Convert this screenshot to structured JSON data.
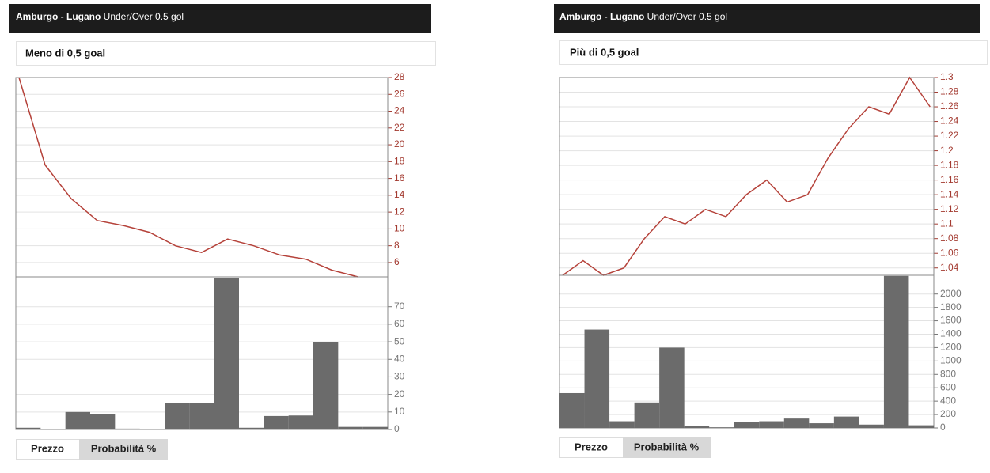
{
  "panels": [
    {
      "match": "Amburgo - Lugano",
      "market": "Under/Over 0.5 gol",
      "selection": "Meno di 0,5 goal",
      "buttons": [
        "Prezzo",
        "Probabilità %"
      ]
    },
    {
      "match": "Amburgo - Lugano",
      "market": "Under/Over 0.5 gol",
      "selection": "Più di 0,5 goal",
      "buttons": [
        "Prezzo",
        "Probabilità %"
      ]
    }
  ],
  "chart_data": [
    {
      "type": "line",
      "color": "#b5423a",
      "values": [
        28,
        17.6,
        13.6,
        11.0,
        10.4,
        9.6,
        8.0,
        7.2,
        8.8,
        8.0,
        6.9,
        6.4,
        5.1,
        4.3
      ],
      "ylim": [
        4.3,
        28
      ],
      "yticks": [
        6,
        8,
        10,
        12,
        14,
        16,
        18,
        20,
        22,
        24,
        26,
        28
      ],
      "grid": true
    },
    {
      "type": "bar",
      "color": "#6b6b6b",
      "values": [
        1,
        0,
        10,
        9,
        0.5,
        0,
        15,
        15,
        86.5,
        1,
        7.7,
        8,
        50,
        1.5,
        1.5
      ],
      "ylim": [
        0,
        87
      ],
      "yticks": [
        0,
        10,
        20,
        30,
        40,
        50,
        60,
        70
      ],
      "grid": true
    },
    {
      "type": "line",
      "color": "#b5423a",
      "values": [
        1.03,
        1.05,
        1.03,
        1.04,
        1.08,
        1.11,
        1.1,
        1.12,
        1.11,
        1.14,
        1.16,
        1.13,
        1.14,
        1.19,
        1.23,
        1.26,
        1.25,
        1.3,
        1.26
      ],
      "ylim": [
        1.03,
        1.3
      ],
      "yticks": [
        1.04,
        1.06,
        1.08,
        1.1,
        1.12,
        1.14,
        1.16,
        1.18,
        1.2,
        1.22,
        1.24,
        1.26,
        1.28,
        1.3
      ],
      "grid": true
    },
    {
      "type": "bar",
      "color": "#6b6b6b",
      "values": [
        520,
        1470,
        100,
        380,
        1200,
        30,
        10,
        90,
        100,
        140,
        70,
        170,
        50,
        2270,
        40
      ],
      "ylim": [
        0,
        2280
      ],
      "yticks": [
        0,
        200,
        400,
        600,
        800,
        1000,
        1200,
        1400,
        1600,
        1800,
        2000
      ],
      "grid": true
    }
  ]
}
